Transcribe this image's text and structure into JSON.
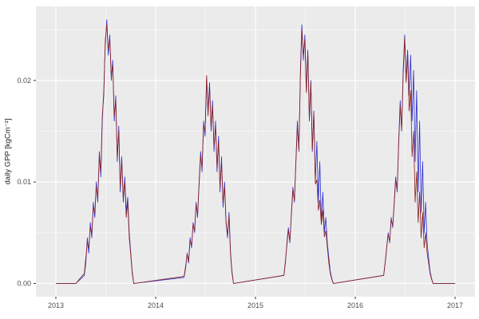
{
  "figure": {
    "background": "#FFFFFF"
  },
  "chart_data": {
    "type": "line",
    "title": "",
    "xlabel": "",
    "ylabel": "daily GPP [kgCm⁻²]",
    "theme": "ggplot-grey",
    "panel_bg": "#EBEBEB",
    "grid_color": "#FFFFFF",
    "tick_color": "#333333",
    "tick_label_color": "#4D4D4D",
    "legend": "none",
    "xlim": [
      2012.8,
      2017.2
    ],
    "ylim": [
      -0.0013,
      0.0273
    ],
    "x_ticks": [
      2013,
      2014,
      2015,
      2016,
      2017
    ],
    "x_tick_labels": [
      "2013",
      "2014",
      "2015",
      "2016",
      "2017"
    ],
    "x_minor_ticks": [
      2013.5,
      2014.5,
      2015.5,
      2016.5
    ],
    "y_ticks": [
      0,
      0.01,
      0.02
    ],
    "y_tick_labels": [
      "0.00",
      "0.01",
      "0.02"
    ],
    "y_minor_ticks": [
      0.005,
      0.015,
      0.025
    ],
    "series": [
      {
        "name": "blue",
        "color": "#2B2BCC",
        "line_width": 0.8,
        "points": [
          [
            2013.0,
            0
          ],
          [
            2013.2,
            0
          ],
          [
            2013.285,
            0.0008
          ],
          [
            2013.3,
            0.002
          ],
          [
            2013.315,
            0.0045
          ],
          [
            2013.33,
            0.003
          ],
          [
            2013.345,
            0.006
          ],
          [
            2013.36,
            0.0045
          ],
          [
            2013.375,
            0.008
          ],
          [
            2013.39,
            0.0065
          ],
          [
            2013.405,
            0.01
          ],
          [
            2013.42,
            0.008
          ],
          [
            2013.435,
            0.013
          ],
          [
            2013.45,
            0.0105
          ],
          [
            2013.465,
            0.016
          ],
          [
            2013.48,
            0.019
          ],
          [
            2013.495,
            0.0235
          ],
          [
            2013.51,
            0.026
          ],
          [
            2013.525,
            0.0225
          ],
          [
            2013.54,
            0.0245
          ],
          [
            2013.555,
            0.02
          ],
          [
            2013.57,
            0.022
          ],
          [
            2013.585,
            0.016
          ],
          [
            2013.6,
            0.0185
          ],
          [
            2013.615,
            0.012
          ],
          [
            2013.63,
            0.0155
          ],
          [
            2013.645,
            0.009
          ],
          [
            2013.66,
            0.0125
          ],
          [
            2013.675,
            0.008
          ],
          [
            2013.69,
            0.0105
          ],
          [
            2013.705,
            0.007
          ],
          [
            2013.72,
            0.0085
          ],
          [
            2013.735,
            0.005
          ],
          [
            2013.75,
            0.003
          ],
          [
            2013.765,
            0.0012
          ],
          [
            2013.78,
            0
          ],
          [
            2014.285,
            0.0006
          ],
          [
            2014.3,
            0.0015
          ],
          [
            2014.315,
            0.003
          ],
          [
            2014.33,
            0.002
          ],
          [
            2014.345,
            0.0045
          ],
          [
            2014.36,
            0.0035
          ],
          [
            2014.375,
            0.006
          ],
          [
            2014.39,
            0.005
          ],
          [
            2014.405,
            0.008
          ],
          [
            2014.42,
            0.0065
          ],
          [
            2014.435,
            0.01
          ],
          [
            2014.45,
            0.013
          ],
          [
            2014.465,
            0.011
          ],
          [
            2014.48,
            0.016
          ],
          [
            2014.495,
            0.0145
          ],
          [
            2014.51,
            0.0202
          ],
          [
            2014.525,
            0.017
          ],
          [
            2014.54,
            0.0198
          ],
          [
            2014.555,
            0.015
          ],
          [
            2014.57,
            0.018
          ],
          [
            2014.585,
            0.013
          ],
          [
            2014.6,
            0.016
          ],
          [
            2014.615,
            0.011
          ],
          [
            2014.63,
            0.0145
          ],
          [
            2014.645,
            0.009
          ],
          [
            2014.66,
            0.0125
          ],
          [
            2014.675,
            0.0075
          ],
          [
            2014.69,
            0.01
          ],
          [
            2014.705,
            0.006
          ],
          [
            2014.72,
            0.0045
          ],
          [
            2014.735,
            0.007
          ],
          [
            2014.75,
            0.003
          ],
          [
            2014.765,
            0.0012
          ],
          [
            2014.78,
            0
          ],
          [
            2015.285,
            0.0008
          ],
          [
            2015.3,
            0.002
          ],
          [
            2015.315,
            0.004
          ],
          [
            2015.33,
            0.0055
          ],
          [
            2015.345,
            0.004
          ],
          [
            2015.36,
            0.007
          ],
          [
            2015.375,
            0.0095
          ],
          [
            2015.39,
            0.008
          ],
          [
            2015.405,
            0.012
          ],
          [
            2015.42,
            0.016
          ],
          [
            2015.435,
            0.013
          ],
          [
            2015.45,
            0.021
          ],
          [
            2015.465,
            0.0255
          ],
          [
            2015.48,
            0.022
          ],
          [
            2015.495,
            0.0245
          ],
          [
            2015.51,
            0.019
          ],
          [
            2015.525,
            0.023
          ],
          [
            2015.54,
            0.016
          ],
          [
            2015.555,
            0.02
          ],
          [
            2015.57,
            0.013
          ],
          [
            2015.585,
            0.017
          ],
          [
            2015.6,
            0.01
          ],
          [
            2015.615,
            0.014
          ],
          [
            2015.63,
            0.008
          ],
          [
            2015.645,
            0.012
          ],
          [
            2015.66,
            0.006
          ],
          [
            2015.675,
            0.009
          ],
          [
            2015.69,
            0.005
          ],
          [
            2015.705,
            0.0065
          ],
          [
            2015.72,
            0.004
          ],
          [
            2015.735,
            0.0025
          ],
          [
            2015.75,
            0.0012
          ],
          [
            2015.765,
            0.0005
          ],
          [
            2015.78,
            0
          ],
          [
            2016.285,
            0.0008
          ],
          [
            2016.3,
            0.002
          ],
          [
            2016.315,
            0.0035
          ],
          [
            2016.33,
            0.005
          ],
          [
            2016.345,
            0.004
          ],
          [
            2016.36,
            0.0065
          ],
          [
            2016.375,
            0.0055
          ],
          [
            2016.39,
            0.008
          ],
          [
            2016.405,
            0.0105
          ],
          [
            2016.42,
            0.009
          ],
          [
            2016.435,
            0.014
          ],
          [
            2016.45,
            0.018
          ],
          [
            2016.465,
            0.015
          ],
          [
            2016.48,
            0.021
          ],
          [
            2016.495,
            0.0245
          ],
          [
            2016.51,
            0.02
          ],
          [
            2016.525,
            0.023
          ],
          [
            2016.54,
            0.0185
          ],
          [
            2016.555,
            0.0225
          ],
          [
            2016.57,
            0.016
          ],
          [
            2016.585,
            0.021
          ],
          [
            2016.6,
            0.012
          ],
          [
            2016.615,
            0.019
          ],
          [
            2016.63,
            0.009
          ],
          [
            2016.645,
            0.016
          ],
          [
            2016.66,
            0.007
          ],
          [
            2016.675,
            0.012
          ],
          [
            2016.69,
            0.005
          ],
          [
            2016.705,
            0.008
          ],
          [
            2016.72,
            0.004
          ],
          [
            2016.735,
            0.0025
          ],
          [
            2016.75,
            0.0012
          ],
          [
            2016.765,
            0.0005
          ],
          [
            2016.78,
            0
          ],
          [
            2017.0,
            0
          ]
        ]
      },
      {
        "name": "darkred",
        "color": "#8B1D1D",
        "line_width": 0.8,
        "points": [
          [
            2013.0,
            0
          ],
          [
            2013.2,
            0
          ],
          [
            2013.285,
            0.001
          ],
          [
            2013.3,
            0.0025
          ],
          [
            2013.315,
            0.004
          ],
          [
            2013.33,
            0.0035
          ],
          [
            2013.345,
            0.0055
          ],
          [
            2013.36,
            0.005
          ],
          [
            2013.375,
            0.0075
          ],
          [
            2013.39,
            0.007
          ],
          [
            2013.405,
            0.0095
          ],
          [
            2013.42,
            0.0085
          ],
          [
            2013.435,
            0.0125
          ],
          [
            2013.45,
            0.011
          ],
          [
            2013.465,
            0.0165
          ],
          [
            2013.48,
            0.0185
          ],
          [
            2013.495,
            0.024
          ],
          [
            2013.51,
            0.0255
          ],
          [
            2013.525,
            0.023
          ],
          [
            2013.54,
            0.024
          ],
          [
            2013.555,
            0.0205
          ],
          [
            2013.57,
            0.0215
          ],
          [
            2013.585,
            0.0165
          ],
          [
            2013.6,
            0.018
          ],
          [
            2013.615,
            0.0125
          ],
          [
            2013.63,
            0.015
          ],
          [
            2013.645,
            0.0095
          ],
          [
            2013.66,
            0.012
          ],
          [
            2013.675,
            0.0085
          ],
          [
            2013.69,
            0.01
          ],
          [
            2013.705,
            0.0065
          ],
          [
            2013.72,
            0.008
          ],
          [
            2013.735,
            0.0045
          ],
          [
            2013.75,
            0.0028
          ],
          [
            2013.765,
            0.001
          ],
          [
            2013.78,
            0
          ],
          [
            2014.285,
            0.0007
          ],
          [
            2014.3,
            0.0017
          ],
          [
            2014.315,
            0.0028
          ],
          [
            2014.33,
            0.0022
          ],
          [
            2014.345,
            0.0042
          ],
          [
            2014.36,
            0.0038
          ],
          [
            2014.375,
            0.0058
          ],
          [
            2014.39,
            0.0052
          ],
          [
            2014.405,
            0.0078
          ],
          [
            2014.42,
            0.0068
          ],
          [
            2014.435,
            0.0098
          ],
          [
            2014.45,
            0.0125
          ],
          [
            2014.465,
            0.0115
          ],
          [
            2014.48,
            0.0155
          ],
          [
            2014.495,
            0.015
          ],
          [
            2014.51,
            0.0205
          ],
          [
            2014.525,
            0.0165
          ],
          [
            2014.54,
            0.0195
          ],
          [
            2014.555,
            0.0155
          ],
          [
            2014.57,
            0.0175
          ],
          [
            2014.585,
            0.0135
          ],
          [
            2014.6,
            0.0155
          ],
          [
            2014.615,
            0.0115
          ],
          [
            2014.63,
            0.014
          ],
          [
            2014.645,
            0.0095
          ],
          [
            2014.66,
            0.012
          ],
          [
            2014.675,
            0.008
          ],
          [
            2014.69,
            0.0095
          ],
          [
            2014.705,
            0.0062
          ],
          [
            2014.72,
            0.0048
          ],
          [
            2014.735,
            0.0065
          ],
          [
            2014.75,
            0.0028
          ],
          [
            2014.765,
            0.001
          ],
          [
            2014.78,
            0
          ],
          [
            2015.285,
            0.0008
          ],
          [
            2015.3,
            0.0022
          ],
          [
            2015.315,
            0.0038
          ],
          [
            2015.33,
            0.0052
          ],
          [
            2015.345,
            0.0042
          ],
          [
            2015.36,
            0.0068
          ],
          [
            2015.375,
            0.0092
          ],
          [
            2015.39,
            0.0082
          ],
          [
            2015.405,
            0.0118
          ],
          [
            2015.42,
            0.0155
          ],
          [
            2015.435,
            0.0132
          ],
          [
            2015.45,
            0.0205
          ],
          [
            2015.465,
            0.025
          ],
          [
            2015.48,
            0.0225
          ],
          [
            2015.495,
            0.024
          ],
          [
            2015.51,
            0.0188
          ],
          [
            2015.525,
            0.0228
          ],
          [
            2015.54,
            0.0162
          ],
          [
            2015.555,
            0.0198
          ],
          [
            2015.57,
            0.0132
          ],
          [
            2015.585,
            0.0168
          ],
          [
            2015.6,
            0.0098
          ],
          [
            2015.615,
            0.0102
          ],
          [
            2015.63,
            0.0072
          ],
          [
            2015.645,
            0.0082
          ],
          [
            2015.66,
            0.0058
          ],
          [
            2015.675,
            0.0072
          ],
          [
            2015.69,
            0.0046
          ],
          [
            2015.705,
            0.0052
          ],
          [
            2015.72,
            0.0036
          ],
          [
            2015.735,
            0.002
          ],
          [
            2015.75,
            0.001
          ],
          [
            2015.765,
            0.0004
          ],
          [
            2015.78,
            0
          ],
          [
            2016.285,
            0.0008
          ],
          [
            2016.3,
            0.0021
          ],
          [
            2016.315,
            0.0036
          ],
          [
            2016.33,
            0.0048
          ],
          [
            2016.345,
            0.0042
          ],
          [
            2016.36,
            0.0063
          ],
          [
            2016.375,
            0.0057
          ],
          [
            2016.39,
            0.0078
          ],
          [
            2016.405,
            0.0102
          ],
          [
            2016.42,
            0.0092
          ],
          [
            2016.435,
            0.0138
          ],
          [
            2016.45,
            0.0175
          ],
          [
            2016.465,
            0.0152
          ],
          [
            2016.48,
            0.0205
          ],
          [
            2016.495,
            0.0242
          ],
          [
            2016.51,
            0.0198
          ],
          [
            2016.525,
            0.0225
          ],
          [
            2016.54,
            0.017
          ],
          [
            2016.555,
            0.019
          ],
          [
            2016.57,
            0.0125
          ],
          [
            2016.585,
            0.015
          ],
          [
            2016.6,
            0.008
          ],
          [
            2016.615,
            0.011
          ],
          [
            2016.63,
            0.006
          ],
          [
            2016.645,
            0.009
          ],
          [
            2016.66,
            0.0045
          ],
          [
            2016.675,
            0.007
          ],
          [
            2016.69,
            0.0035
          ],
          [
            2016.705,
            0.005
          ],
          [
            2016.72,
            0.003
          ],
          [
            2016.735,
            0.002
          ],
          [
            2016.75,
            0.001
          ],
          [
            2016.765,
            0.0004
          ],
          [
            2016.78,
            0
          ],
          [
            2017.0,
            0
          ]
        ]
      }
    ]
  }
}
